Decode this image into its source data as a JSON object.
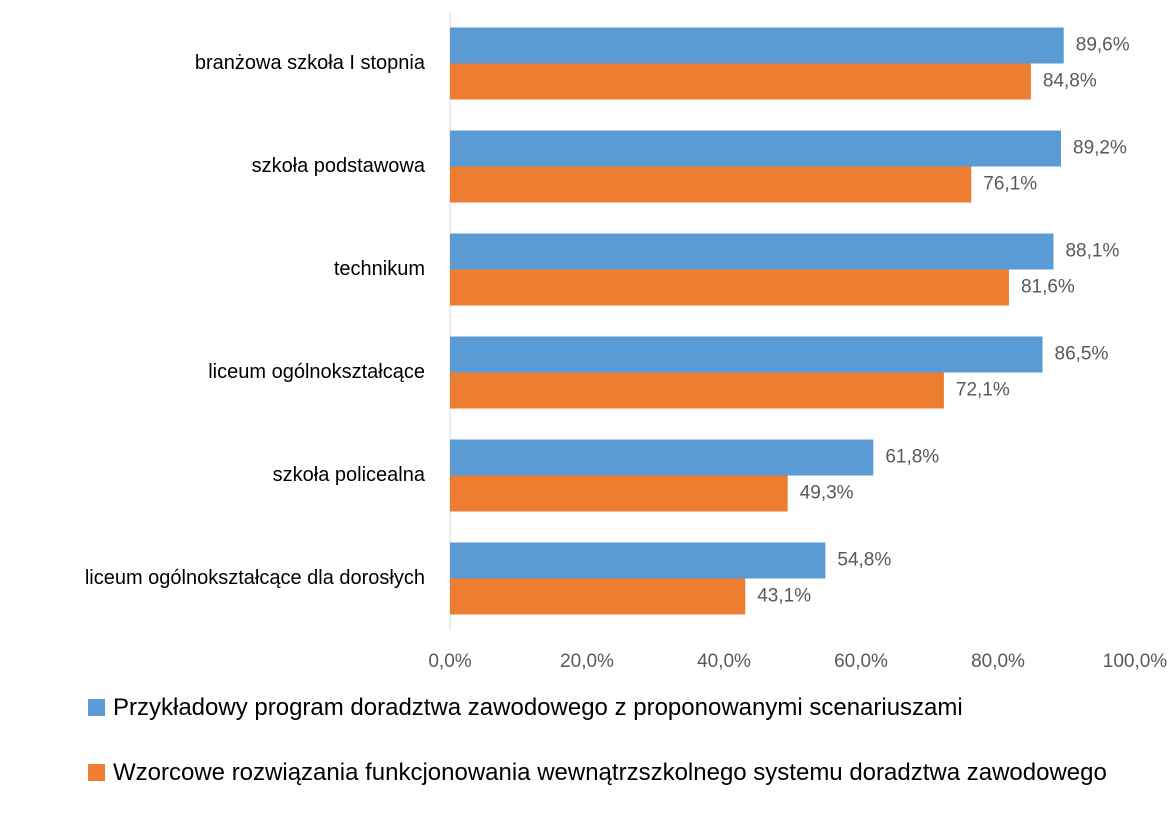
{
  "chart_data": {
    "type": "barh",
    "categories": [
      "branżowa szkoła I stopnia",
      "szkoła podstawowa",
      "technikum",
      "liceum ogólnokształcące",
      "szkoła policealna",
      "liceum ogólnokształcące dla dorosłych"
    ],
    "series": [
      {
        "name": "Przykładowy program doradztwa zawodowego z proponowanymi scenariuszami",
        "color": "#5b9bd5",
        "values": [
          89.6,
          89.2,
          88.1,
          86.5,
          61.8,
          54.8
        ],
        "value_labels": [
          "89,6%",
          "89,2%",
          "88,1%",
          "86,5%",
          "61,8%",
          "54,8%"
        ]
      },
      {
        "name": "Wzorcowe rozwiązania funkcjonowania wewnątrzszkolnego systemu doradztwa zawodowego",
        "color": "#ed7d31",
        "values": [
          84.8,
          76.1,
          81.6,
          72.1,
          49.3,
          43.1
        ],
        "value_labels": [
          "84,8%",
          "76,1%",
          "81,6%",
          "72,1%",
          "49,3%",
          "43,1%"
        ]
      }
    ],
    "xlim": [
      0,
      100
    ],
    "xticks": [
      {
        "value": 0,
        "label": "0,0%"
      },
      {
        "value": 20,
        "label": "20,0%"
      },
      {
        "value": 40,
        "label": "40,0%"
      },
      {
        "value": 60,
        "label": "60,0%"
      },
      {
        "value": 80,
        "label": "80,0%"
      },
      {
        "value": 100,
        "label": "100,0%"
      }
    ],
    "grid": false
  }
}
